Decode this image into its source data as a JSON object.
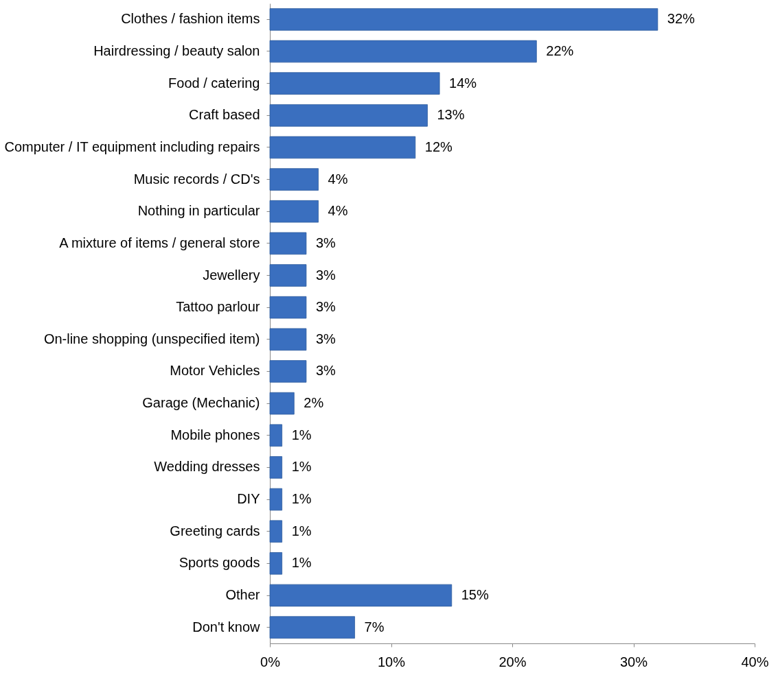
{
  "chart_data": {
    "type": "bar",
    "orientation": "horizontal",
    "categories": [
      "Clothes / fashion items",
      "Hairdressing / beauty salon",
      "Food / catering",
      "Craft based",
      "Computer / IT equipment including repairs",
      "Music records  / CD's",
      "Nothing in particular",
      "A mixture of items / general store",
      "Jewellery",
      "Tattoo parlour",
      "On-line shopping (unspecified item)",
      "Motor Vehicles",
      "Garage (Mechanic)",
      "Mobile phones",
      "Wedding dresses",
      "DIY",
      "Greeting cards",
      "Sports goods",
      "Other",
      "Don't know"
    ],
    "values": [
      32,
      22,
      14,
      13,
      12,
      4,
      4,
      3,
      3,
      3,
      3,
      3,
      2,
      1,
      1,
      1,
      1,
      1,
      15,
      7
    ],
    "value_labels": [
      "32%",
      "22%",
      "14%",
      "13%",
      "12%",
      "4%",
      "4%",
      "3%",
      "3%",
      "3%",
      "3%",
      "3%",
      "2%",
      "1%",
      "1%",
      "1%",
      "1%",
      "1%",
      "15%",
      "7%"
    ],
    "color": "#3a6fbf",
    "xlim": [
      0,
      40
    ],
    "xticks": [
      {
        "value": 0,
        "label": "0%"
      },
      {
        "value": 10,
        "label": "10%"
      },
      {
        "value": 20,
        "label": "20%"
      },
      {
        "value": 30,
        "label": "30%"
      },
      {
        "value": 40,
        "label": "40%"
      }
    ],
    "grid": false
  }
}
